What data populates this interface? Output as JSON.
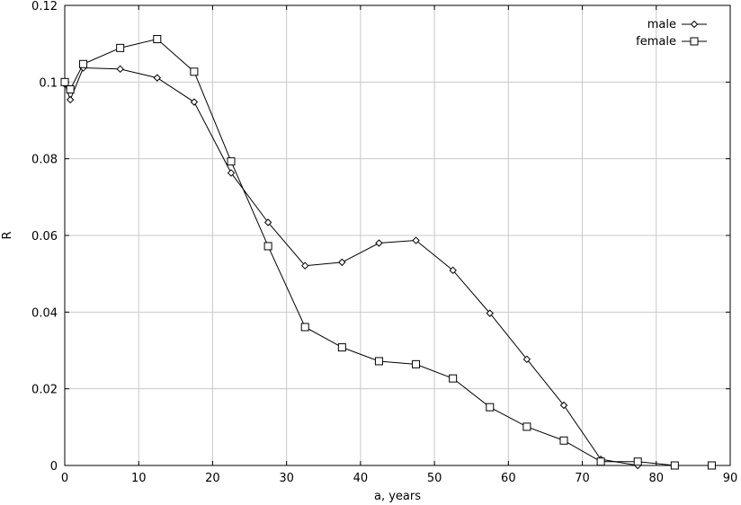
{
  "chart_data": {
    "type": "line",
    "title": "",
    "xlabel": "a, years",
    "ylabel": "R",
    "xlim": [
      0,
      90
    ],
    "ylim": [
      0,
      0.12
    ],
    "x_ticks": [
      0,
      10,
      20,
      30,
      40,
      50,
      60,
      70,
      80,
      90
    ],
    "y_ticks": [
      0,
      0.02,
      0.04,
      0.06,
      0.08,
      0.1,
      0.12
    ],
    "x_tick_labels": [
      "0",
      "10",
      "20",
      "30",
      "40",
      "50",
      "60",
      "70",
      "80",
      "90"
    ],
    "y_tick_labels": [
      "0",
      "0.02",
      "0.04",
      "0.06",
      "0.08",
      "0.1",
      "0.12"
    ],
    "grid": true,
    "legend_position": "top-right",
    "series": [
      {
        "name": "male",
        "marker": "diamond",
        "color": "#000000",
        "x": [
          0,
          0.75,
          2.5,
          7.5,
          12.5,
          17.5,
          22.5,
          27.5,
          32.5,
          37.5,
          42.5,
          47.5,
          52.5,
          57.5,
          62.5,
          67.5,
          72.5,
          77.5,
          82.5,
          87.5
        ],
        "y": [
          0.0995,
          0.0954,
          0.1037,
          0.1034,
          0.1011,
          0.0948,
          0.0763,
          0.0634,
          0.0521,
          0.053,
          0.058,
          0.0587,
          0.0509,
          0.0397,
          0.0277,
          0.0157,
          0.0016,
          0.0,
          0.0,
          0.0
        ]
      },
      {
        "name": "female",
        "marker": "square",
        "color": "#000000",
        "x": [
          0,
          0.75,
          2.5,
          7.5,
          12.5,
          17.5,
          22.5,
          27.5,
          32.5,
          37.5,
          42.5,
          47.5,
          52.5,
          57.5,
          62.5,
          67.5,
          72.5,
          77.5,
          82.5,
          87.5
        ],
        "y": [
          0.1,
          0.0981,
          0.1047,
          0.1089,
          0.1112,
          0.1027,
          0.0793,
          0.0572,
          0.0361,
          0.0308,
          0.0272,
          0.0264,
          0.0227,
          0.0152,
          0.0101,
          0.0065,
          0.001,
          0.001,
          0.0,
          0.0
        ]
      }
    ]
  }
}
